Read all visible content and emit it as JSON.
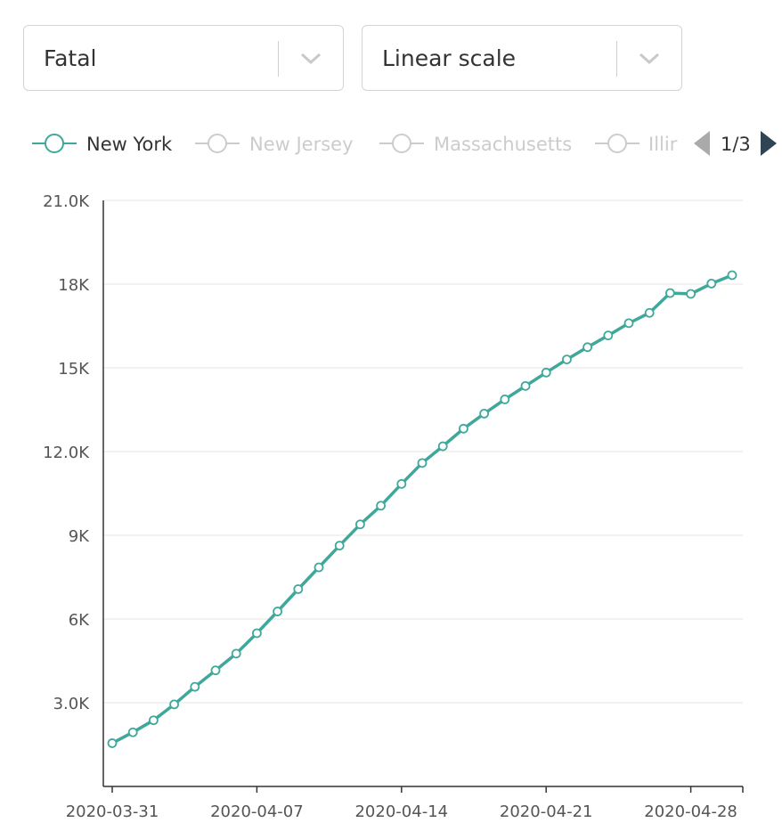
{
  "controls": {
    "metric_select": {
      "value": "Fatal"
    },
    "scale_select": {
      "value": "Linear scale"
    }
  },
  "legend": {
    "items": [
      {
        "label": "New York",
        "active": true
      },
      {
        "label": "New Jersey",
        "active": false
      },
      {
        "label": "Massachusetts",
        "active": false
      },
      {
        "label": "Illir",
        "active": false
      }
    ],
    "page_indicator": "1/3"
  },
  "colors": {
    "series": "#3fa89b",
    "inactive": "#cccccc",
    "axis": "#333333",
    "grid": "#eeeeee",
    "tick_text": "#555555",
    "arrow_prev": "#aaaaaa",
    "arrow_next": "#2f4554"
  },
  "chart_data": {
    "type": "line",
    "title": "",
    "xlabel": "",
    "ylabel": "",
    "ylim": [
      0,
      21000
    ],
    "y_ticks": [
      {
        "value": 3000,
        "label": "3.0K"
      },
      {
        "value": 6000,
        "label": "6K"
      },
      {
        "value": 9000,
        "label": "9K"
      },
      {
        "value": 12000,
        "label": "12.0K"
      },
      {
        "value": 15000,
        "label": "15K"
      },
      {
        "value": 18000,
        "label": "18K"
      },
      {
        "value": 21000,
        "label": "21.0K"
      }
    ],
    "x_ticks": [
      "2020-03-31",
      "2020-04-07",
      "2020-04-14",
      "2020-04-21",
      "2020-04-28"
    ],
    "grid": true,
    "x": [
      "2020-03-31",
      "2020-04-01",
      "2020-04-02",
      "2020-04-03",
      "2020-04-04",
      "2020-04-05",
      "2020-04-06",
      "2020-04-07",
      "2020-04-08",
      "2020-04-09",
      "2020-04-10",
      "2020-04-11",
      "2020-04-12",
      "2020-04-13",
      "2020-04-14",
      "2020-04-15",
      "2020-04-16",
      "2020-04-17",
      "2020-04-18",
      "2020-04-19",
      "2020-04-20",
      "2020-04-21",
      "2020-04-22",
      "2020-04-23",
      "2020-04-24",
      "2020-04-25",
      "2020-04-26",
      "2020-04-27",
      "2020-04-28",
      "2020-04-29",
      "2020-04-30"
    ],
    "series": [
      {
        "name": "New York",
        "values": [
          1550,
          1940,
          2370,
          2940,
          3570,
          4160,
          4760,
          5490,
          6270,
          7070,
          7850,
          8630,
          9390,
          10060,
          10840,
          11590,
          12190,
          12820,
          13360,
          13870,
          14350,
          14830,
          15300,
          15740,
          16160,
          16600,
          16970,
          17680,
          17650,
          18020,
          18320
        ]
      }
    ]
  }
}
